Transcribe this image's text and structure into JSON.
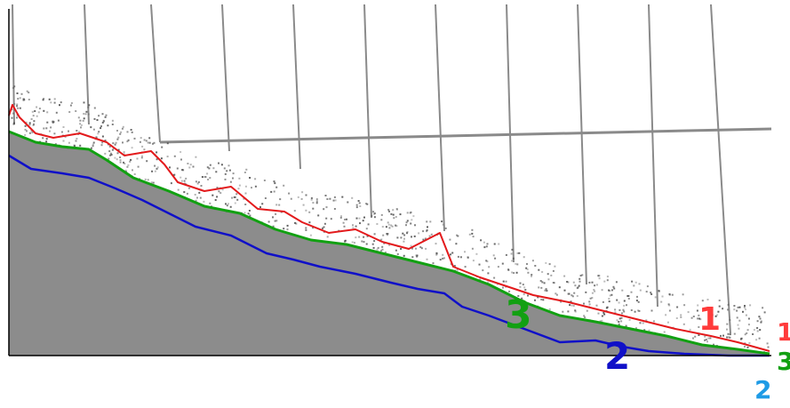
{
  "colors": {
    "background": "#ffffff",
    "solid_region": "#8c8c8c",
    "grid_lines": "#8a8a8a",
    "speckle": "#555555",
    "boundary_1": "#e31a1c",
    "boundary_2": "#1010c8",
    "boundary_3": "#12a012",
    "label_1": "#ff3b3b",
    "label_2_inside": "#1010c8",
    "label_2_outside": "#1e9be6",
    "label_3_inside": "#12a012",
    "label_3_outside": "#12a012"
  },
  "labels": {
    "curve_1_inside": "1",
    "curve_2_inside": "2",
    "curve_3_inside": "3",
    "curve_1_outside": "1",
    "curve_3_outside": "3",
    "curve_2_outside": "2"
  }
}
